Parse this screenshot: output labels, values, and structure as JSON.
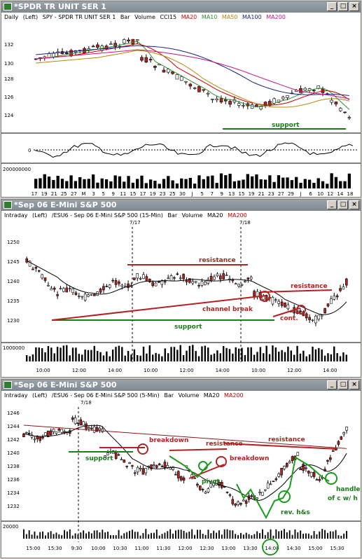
{
  "colors": {
    "up": "#ffffff",
    "down": "#b22222",
    "ma20": "#cc0000",
    "ma10": "#2e8b2e",
    "ma50": "#b8860b",
    "ma100": "#1a237e",
    "ma200": "#c71585",
    "annot_red": "#b22222",
    "annot_green": "#1b7a1b"
  },
  "window_buttons": {
    "minimize": "_",
    "restore": "□",
    "close": "×"
  },
  "windows": [
    {
      "title": "*SPDR TR UNIT SER 1",
      "info": [
        "Daily",
        "(Left)",
        "SPY - SPDR TR UNIT SER 1",
        "Bar",
        "Volume",
        "CCI15"
      ],
      "ma_labels": [
        {
          "text": "MA20",
          "color": "#cc0000"
        },
        {
          "text": "MA10",
          "color": "#2e8b2e"
        },
        {
          "text": "MA50",
          "color": "#b8860b"
        },
        {
          "text": "MA100",
          "color": "#1a237e"
        },
        {
          "text": "MA200",
          "color": "#c71585"
        }
      ],
      "y_ticks": [
        "132",
        "130",
        "128",
        "126",
        "124"
      ],
      "cci_tick": "0",
      "volume_label": "200000000",
      "x_ticks": [
        "17",
        "19",
        "21",
        "25",
        "27",
        "M",
        "3",
        "5",
        "9",
        "11",
        "15",
        "17",
        "19",
        "23",
        "25",
        "30",
        "J",
        "5",
        "7",
        "9",
        "13",
        "15",
        "19",
        "21",
        "23",
        "27",
        "29",
        "J",
        "6",
        "10",
        "12",
        "14",
        "18"
      ],
      "annotations": {
        "support": "support"
      }
    },
    {
      "title": "*Sep 06  E-Mini S&P 500",
      "info": [
        "Intraday",
        "(Left)",
        "/ESU6 - Sep 06  E-Mini S&P 500  (15-Min)",
        "Bar",
        "Volume"
      ],
      "ma_labels": [
        {
          "text": "MA20",
          "color": "#000000"
        },
        {
          "text": "MA200",
          "color": "#cc0000"
        }
      ],
      "date_markers": [
        "7/17",
        "7/18"
      ],
      "y_ticks": [
        "1250",
        "1245",
        "1240",
        "1235",
        "1230"
      ],
      "volume_label": "1000000",
      "x_ticks": [
        "10:00",
        "12:00",
        "14:00",
        "10:00",
        "12:00",
        "14:00",
        "10:00",
        "12:00",
        "14:00"
      ],
      "annotations": {
        "resistance_top": "resistance",
        "resistance_right": "resistance",
        "channel_break": "channel break",
        "cont": "cont.",
        "support": "support"
      }
    },
    {
      "title": "*Sep 06  E-Mini S&P 500",
      "info": [
        "Intraday",
        "(Left)",
        "/ESU6 - Sep 06  E-Mini S&P 500  (5-Min)",
        "Bar",
        "Volume"
      ],
      "ma_labels": [
        {
          "text": "MA20",
          "color": "#000000"
        },
        {
          "text": "MA200",
          "color": "#cc0000"
        }
      ],
      "date_markers": [
        "7/18"
      ],
      "y_ticks": [
        "1246",
        "1244",
        "1242",
        "1240",
        "1238",
        "1236",
        "1234",
        "1232"
      ],
      "volume_label": "20000",
      "x_ticks": [
        "15:00",
        "15:30",
        "9:30",
        "10:00",
        "10:30",
        "11:00",
        "11:30",
        "12:00",
        "12:30",
        "13:00",
        "13:30",
        "14:00",
        "14:30",
        "15:00",
        "15:30"
      ],
      "annotations": {
        "support": "support",
        "breakdown1": "breakdown",
        "resistance": "resistance",
        "breakdown2": "breakdown",
        "pivot": "pivot",
        "rev_hs": "rev. h&s",
        "handle": "handle",
        "handle2": "of c w/ h"
      }
    }
  ]
}
